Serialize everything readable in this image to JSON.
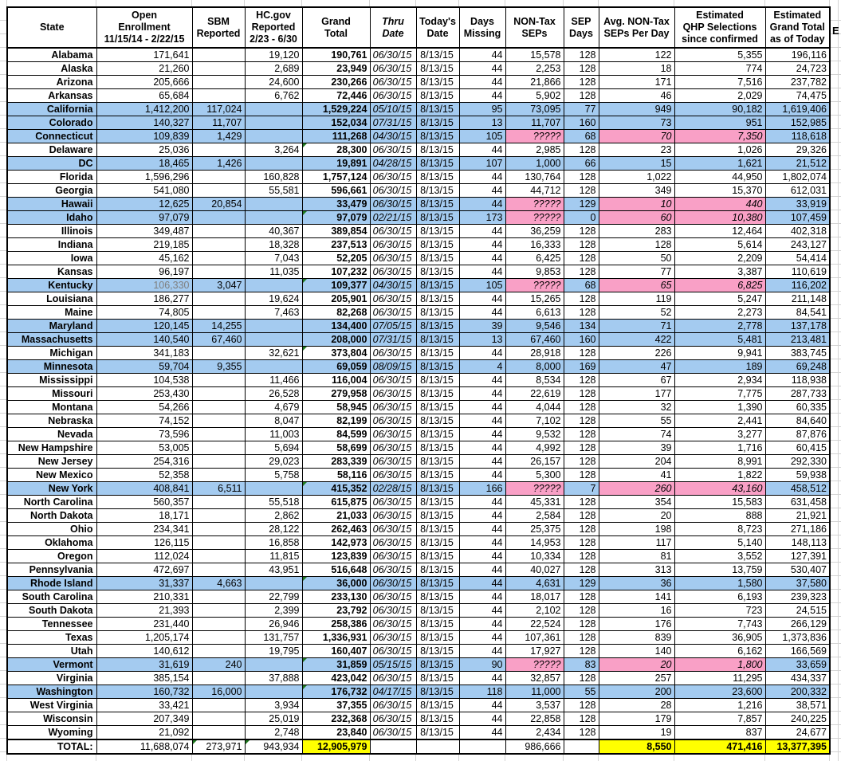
{
  "page": {
    "partial_next_column_label": "E"
  },
  "colors": {
    "row_blue": "#A4CBF0",
    "cell_pink": "#F9A0C6",
    "total_yellow": "#FFFF00",
    "corner_green": "#1F7A1F",
    "gray_text": "#7F7F7F",
    "grid_gray": "#D4D4D4"
  },
  "columns": [
    {
      "key": "s",
      "label": "State"
    },
    {
      "key": "o",
      "label": "Open\nEnrollment\n11/15/14 - 2/22/15"
    },
    {
      "key": "b",
      "label": "SBM\nReported"
    },
    {
      "key": "h",
      "label": "HC.gov\nReported\n2/23 - 6/30"
    },
    {
      "key": "g",
      "label": "Grand\nTotal"
    },
    {
      "key": "t",
      "label": "Thru\nDate"
    },
    {
      "key": "d",
      "label": "Today's\nDate"
    },
    {
      "key": "m",
      "label": "Days\nMissing"
    },
    {
      "key": "n",
      "label": "NON-Tax\nSEPs"
    },
    {
      "key": "p",
      "label": "SEP\nDays"
    },
    {
      "key": "a",
      "label": "Avg. NON-Tax\nSEPs Per Day"
    },
    {
      "key": "q",
      "label": "Estimated\nQHP Selections\nsince confirmed"
    },
    {
      "key": "e",
      "label": "Estimated\nGrand Total\nas of Today"
    }
  ],
  "rows": [
    {
      "s": "Alabama",
      "o": "171,641",
      "b": "",
      "h": "19,120",
      "g": "190,761",
      "t": "06/30/15",
      "d": "8/13/15",
      "m": "44",
      "n": "15,578",
      "p": "128",
      "a": "122",
      "q": "5,355",
      "e": "196,116",
      "f": ""
    },
    {
      "s": "Alaska",
      "o": "21,260",
      "b": "",
      "h": "2,689",
      "g": "23,949",
      "t": "06/30/15",
      "d": "8/13/15",
      "m": "44",
      "n": "2,253",
      "p": "128",
      "a": "18",
      "q": "774",
      "e": "24,723",
      "f": ""
    },
    {
      "s": "Arizona",
      "o": "205,666",
      "b": "",
      "h": "24,600",
      "g": "230,266",
      "t": "06/30/15",
      "d": "8/13/15",
      "m": "44",
      "n": "21,866",
      "p": "128",
      "a": "171",
      "q": "7,516",
      "e": "237,782",
      "f": ""
    },
    {
      "s": "Arkansas",
      "o": "65,684",
      "b": "",
      "h": "6,762",
      "g": "72,446",
      "t": "06/30/15",
      "d": "8/13/15",
      "m": "44",
      "n": "5,902",
      "p": "128",
      "a": "46",
      "q": "2,029",
      "e": "74,475",
      "f": ""
    },
    {
      "s": "California",
      "o": "1,412,200",
      "b": "117,024",
      "h": "",
      "g": "1,529,224",
      "t": "05/10/15",
      "d": "8/13/15",
      "m": "95",
      "n": "73,095",
      "p": "77",
      "a": "949",
      "q": "90,182",
      "e": "1,619,406",
      "f": "B"
    },
    {
      "s": "Colorado",
      "o": "140,327",
      "b": "11,707",
      "h": "",
      "g": "152,034",
      "t": "07/31/15",
      "d": "8/13/15",
      "m": "13",
      "n": "11,707",
      "p": "160",
      "a": "73",
      "q": "951",
      "e": "152,985",
      "f": "B"
    },
    {
      "s": "Connecticut",
      "o": "109,839",
      "b": "1,429",
      "h": "",
      "g": "111,268",
      "t": "04/30/15",
      "d": "8/13/15",
      "m": "105",
      "n": "?????",
      "p": "68",
      "a": "70",
      "q": "7,350",
      "e": "118,618",
      "f": "BP"
    },
    {
      "s": "Delaware",
      "o": "25,036",
      "b": "",
      "h": "3,264",
      "g": "28,300",
      "t": "06/30/15",
      "d": "8/13/15",
      "m": "44",
      "n": "2,985",
      "p": "128",
      "a": "23",
      "q": "1,026",
      "e": "29,326",
      "f": "C"
    },
    {
      "s": "DC",
      "o": "18,465",
      "b": "1,426",
      "h": "",
      "g": "19,891",
      "t": "04/28/15",
      "d": "8/13/15",
      "m": "107",
      "n": "1,000",
      "p": "66",
      "a": "15",
      "q": "1,621",
      "e": "21,512",
      "f": "B"
    },
    {
      "s": "Florida",
      "o": "1,596,296",
      "b": "",
      "h": "160,828",
      "g": "1,757,124",
      "t": "06/30/15",
      "d": "8/13/15",
      "m": "44",
      "n": "130,764",
      "p": "128",
      "a": "1,022",
      "q": "44,950",
      "e": "1,802,074",
      "f": ""
    },
    {
      "s": "Georgia",
      "o": "541,080",
      "b": "",
      "h": "55,581",
      "g": "596,661",
      "t": "06/30/15",
      "d": "8/13/15",
      "m": "44",
      "n": "44,712",
      "p": "128",
      "a": "349",
      "q": "15,370",
      "e": "612,031",
      "f": ""
    },
    {
      "s": "Hawaii",
      "o": "12,625",
      "b": "20,854",
      "h": "",
      "g": "33,479",
      "t": "06/30/15",
      "d": "8/13/15",
      "m": "44",
      "n": "?????",
      "p": "129",
      "a": "10",
      "q": "440",
      "e": "33,919",
      "f": "BP"
    },
    {
      "s": "Idaho",
      "o": "97,079",
      "b": "",
      "h": "",
      "g": "97,079",
      "t": "02/21/15",
      "d": "8/13/15",
      "m": "173",
      "n": "?????",
      "p": "0",
      "a": "60",
      "q": "10,380",
      "e": "107,459",
      "f": "BPC"
    },
    {
      "s": "Illinois",
      "o": "349,487",
      "b": "",
      "h": "40,367",
      "g": "389,854",
      "t": "06/30/15",
      "d": "8/13/15",
      "m": "44",
      "n": "36,259",
      "p": "128",
      "a": "283",
      "q": "12,464",
      "e": "402,318",
      "f": ""
    },
    {
      "s": "Indiana",
      "o": "219,185",
      "b": "",
      "h": "18,328",
      "g": "237,513",
      "t": "06/30/15",
      "d": "8/13/15",
      "m": "44",
      "n": "16,333",
      "p": "128",
      "a": "128",
      "q": "5,614",
      "e": "243,127",
      "f": ""
    },
    {
      "s": "Iowa",
      "o": "45,162",
      "b": "",
      "h": "7,043",
      "g": "52,205",
      "t": "06/30/15",
      "d": "8/13/15",
      "m": "44",
      "n": "6,425",
      "p": "128",
      "a": "50",
      "q": "2,209",
      "e": "54,414",
      "f": ""
    },
    {
      "s": "Kansas",
      "o": "96,197",
      "b": "",
      "h": "11,035",
      "g": "107,232",
      "t": "06/30/15",
      "d": "8/13/15",
      "m": "44",
      "n": "9,853",
      "p": "128",
      "a": "77",
      "q": "3,387",
      "e": "110,619",
      "f": ""
    },
    {
      "s": "Kentucky",
      "o": "106,330",
      "b": "3,047",
      "h": "",
      "g": "109,377",
      "t": "04/30/15",
      "d": "8/13/15",
      "m": "105",
      "n": "?????",
      "p": "68",
      "a": "65",
      "q": "6,825",
      "e": "116,202",
      "f": "BPCG"
    },
    {
      "s": "Louisiana",
      "o": "186,277",
      "b": "",
      "h": "19,624",
      "g": "205,901",
      "t": "06/30/15",
      "d": "8/13/15",
      "m": "44",
      "n": "15,265",
      "p": "128",
      "a": "119",
      "q": "5,247",
      "e": "211,148",
      "f": ""
    },
    {
      "s": "Maine",
      "o": "74,805",
      "b": "",
      "h": "7,463",
      "g": "82,268",
      "t": "06/30/15",
      "d": "8/13/15",
      "m": "44",
      "n": "6,613",
      "p": "128",
      "a": "52",
      "q": "2,273",
      "e": "84,541",
      "f": ""
    },
    {
      "s": "Maryland",
      "o": "120,145",
      "b": "14,255",
      "h": "",
      "g": "134,400",
      "t": "07/05/15",
      "d": "8/13/15",
      "m": "39",
      "n": "9,546",
      "p": "134",
      "a": "71",
      "q": "2,778",
      "e": "137,178",
      "f": "B"
    },
    {
      "s": "Massachusetts",
      "o": "140,540",
      "b": "67,460",
      "h": "",
      "g": "208,000",
      "t": "07/31/15",
      "d": "8/13/15",
      "m": "13",
      "n": "67,460",
      "p": "160",
      "a": "422",
      "q": "5,481",
      "e": "213,481",
      "f": "B"
    },
    {
      "s": "Michigan",
      "o": "341,183",
      "b": "",
      "h": "32,621",
      "g": "373,804",
      "t": "06/30/15",
      "d": "8/13/15",
      "m": "44",
      "n": "28,918",
      "p": "128",
      "a": "226",
      "q": "9,941",
      "e": "383,745",
      "f": "C"
    },
    {
      "s": "Minnesota",
      "o": "59,704",
      "b": "9,355",
      "h": "",
      "g": "69,059",
      "t": "08/09/15",
      "d": "8/13/15",
      "m": "4",
      "n": "8,000",
      "p": "169",
      "a": "47",
      "q": "189",
      "e": "69,248",
      "f": "B"
    },
    {
      "s": "Mississippi",
      "o": "104,538",
      "b": "",
      "h": "11,466",
      "g": "116,004",
      "t": "06/30/15",
      "d": "8/13/15",
      "m": "44",
      "n": "8,534",
      "p": "128",
      "a": "67",
      "q": "2,934",
      "e": "118,938",
      "f": ""
    },
    {
      "s": "Missouri",
      "o": "253,430",
      "b": "",
      "h": "26,528",
      "g": "279,958",
      "t": "06/30/15",
      "d": "8/13/15",
      "m": "44",
      "n": "22,619",
      "p": "128",
      "a": "177",
      "q": "7,775",
      "e": "287,733",
      "f": ""
    },
    {
      "s": "Montana",
      "o": "54,266",
      "b": "",
      "h": "4,679",
      "g": "58,945",
      "t": "06/30/15",
      "d": "8/13/15",
      "m": "44",
      "n": "4,044",
      "p": "128",
      "a": "32",
      "q": "1,390",
      "e": "60,335",
      "f": ""
    },
    {
      "s": "Nebraska",
      "o": "74,152",
      "b": "",
      "h": "8,047",
      "g": "82,199",
      "t": "06/30/15",
      "d": "8/13/15",
      "m": "44",
      "n": "7,102",
      "p": "128",
      "a": "55",
      "q": "2,441",
      "e": "84,640",
      "f": ""
    },
    {
      "s": "Nevada",
      "o": "73,596",
      "b": "",
      "h": "11,003",
      "g": "84,599",
      "t": "06/30/15",
      "d": "8/13/15",
      "m": "44",
      "n": "9,532",
      "p": "128",
      "a": "74",
      "q": "3,277",
      "e": "87,876",
      "f": ""
    },
    {
      "s": "New Hampshire",
      "o": "53,005",
      "b": "",
      "h": "5,694",
      "g": "58,699",
      "t": "06/30/15",
      "d": "8/13/15",
      "m": "44",
      "n": "4,992",
      "p": "128",
      "a": "39",
      "q": "1,716",
      "e": "60,415",
      "f": ""
    },
    {
      "s": "New Jersey",
      "o": "254,316",
      "b": "",
      "h": "29,023",
      "g": "283,339",
      "t": "06/30/15",
      "d": "8/13/15",
      "m": "44",
      "n": "26,157",
      "p": "128",
      "a": "204",
      "q": "8,991",
      "e": "292,330",
      "f": ""
    },
    {
      "s": "New Mexico",
      "o": "52,358",
      "b": "",
      "h": "5,758",
      "g": "58,116",
      "t": "06/30/15",
      "d": "8/13/15",
      "m": "44",
      "n": "5,300",
      "p": "128",
      "a": "41",
      "q": "1,822",
      "e": "59,938",
      "f": ""
    },
    {
      "s": "New York",
      "o": "408,841",
      "b": "6,511",
      "h": "",
      "g": "415,352",
      "t": "02/28/15",
      "d": "8/13/15",
      "m": "166",
      "n": "?????",
      "p": "7",
      "a": "260",
      "q": "43,160",
      "e": "458,512",
      "f": "BPC"
    },
    {
      "s": "North Carolina",
      "o": "560,357",
      "b": "",
      "h": "55,518",
      "g": "615,875",
      "t": "06/30/15",
      "d": "8/13/15",
      "m": "44",
      "n": "45,331",
      "p": "128",
      "a": "354",
      "q": "15,583",
      "e": "631,458",
      "f": ""
    },
    {
      "s": "North Dakota",
      "o": "18,171",
      "b": "",
      "h": "2,862",
      "g": "21,033",
      "t": "06/30/15",
      "d": "8/13/15",
      "m": "44",
      "n": "2,584",
      "p": "128",
      "a": "20",
      "q": "888",
      "e": "21,921",
      "f": ""
    },
    {
      "s": "Ohio",
      "o": "234,341",
      "b": "",
      "h": "28,122",
      "g": "262,463",
      "t": "06/30/15",
      "d": "8/13/15",
      "m": "44",
      "n": "25,375",
      "p": "128",
      "a": "198",
      "q": "8,723",
      "e": "271,186",
      "f": ""
    },
    {
      "s": "Oklahoma",
      "o": "126,115",
      "b": "",
      "h": "16,858",
      "g": "142,973",
      "t": "06/30/15",
      "d": "8/13/15",
      "m": "44",
      "n": "14,953",
      "p": "128",
      "a": "117",
      "q": "5,140",
      "e": "148,113",
      "f": ""
    },
    {
      "s": "Oregon",
      "o": "112,024",
      "b": "",
      "h": "11,815",
      "g": "123,839",
      "t": "06/30/15",
      "d": "8/13/15",
      "m": "44",
      "n": "10,334",
      "p": "128",
      "a": "81",
      "q": "3,552",
      "e": "127,391",
      "f": ""
    },
    {
      "s": "Pennsylvania",
      "o": "472,697",
      "b": "",
      "h": "43,951",
      "g": "516,648",
      "t": "06/30/15",
      "d": "8/13/15",
      "m": "44",
      "n": "40,027",
      "p": "128",
      "a": "313",
      "q": "13,759",
      "e": "530,407",
      "f": ""
    },
    {
      "s": "Rhode Island",
      "o": "31,337",
      "b": "4,663",
      "h": "",
      "g": "36,000",
      "t": "06/30/15",
      "d": "8/13/15",
      "m": "44",
      "n": "4,631",
      "p": "129",
      "a": "36",
      "q": "1,580",
      "e": "37,580",
      "f": "BC"
    },
    {
      "s": "South Carolina",
      "o": "210,331",
      "b": "",
      "h": "22,799",
      "g": "233,130",
      "t": "06/30/15",
      "d": "8/13/15",
      "m": "44",
      "n": "18,017",
      "p": "128",
      "a": "141",
      "q": "6,193",
      "e": "239,323",
      "f": ""
    },
    {
      "s": "South Dakota",
      "o": "21,393",
      "b": "",
      "h": "2,399",
      "g": "23,792",
      "t": "06/30/15",
      "d": "8/13/15",
      "m": "44",
      "n": "2,102",
      "p": "128",
      "a": "16",
      "q": "723",
      "e": "24,515",
      "f": ""
    },
    {
      "s": "Tennessee",
      "o": "231,440",
      "b": "",
      "h": "26,946",
      "g": "258,386",
      "t": "06/30/15",
      "d": "8/13/15",
      "m": "44",
      "n": "22,524",
      "p": "128",
      "a": "176",
      "q": "7,743",
      "e": "266,129",
      "f": ""
    },
    {
      "s": "Texas",
      "o": "1,205,174",
      "b": "",
      "h": "131,757",
      "g": "1,336,931",
      "t": "06/30/15",
      "d": "8/13/15",
      "m": "44",
      "n": "107,361",
      "p": "128",
      "a": "839",
      "q": "36,905",
      "e": "1,373,836",
      "f": ""
    },
    {
      "s": "Utah",
      "o": "140,612",
      "b": "",
      "h": "19,795",
      "g": "160,407",
      "t": "06/30/15",
      "d": "8/13/15",
      "m": "44",
      "n": "17,927",
      "p": "128",
      "a": "140",
      "q": "6,162",
      "e": "166,569",
      "f": ""
    },
    {
      "s": "Vermont",
      "o": "31,619",
      "b": "240",
      "h": "",
      "g": "31,859",
      "t": "05/15/15",
      "d": "8/13/15",
      "m": "90",
      "n": "?????",
      "p": "83",
      "a": "20",
      "q": "1,800",
      "e": "33,659",
      "f": "BPC"
    },
    {
      "s": "Virginia",
      "o": "385,154",
      "b": "",
      "h": "37,888",
      "g": "423,042",
      "t": "06/30/15",
      "d": "8/13/15",
      "m": "44",
      "n": "32,857",
      "p": "128",
      "a": "257",
      "q": "11,295",
      "e": "434,337",
      "f": ""
    },
    {
      "s": "Washington",
      "o": "160,732",
      "b": "16,000",
      "h": "",
      "g": "176,732",
      "t": "04/17/15",
      "d": "8/13/15",
      "m": "118",
      "n": "11,000",
      "p": "55",
      "a": "200",
      "q": "23,600",
      "e": "200,332",
      "f": "BC"
    },
    {
      "s": "West Virginia",
      "o": "33,421",
      "b": "",
      "h": "3,934",
      "g": "37,355",
      "t": "06/30/15",
      "d": "8/13/15",
      "m": "44",
      "n": "3,537",
      "p": "128",
      "a": "28",
      "q": "1,216",
      "e": "38,571",
      "f": ""
    },
    {
      "s": "Wisconsin",
      "o": "207,349",
      "b": "",
      "h": "25,019",
      "g": "232,368",
      "t": "06/30/15",
      "d": "8/13/15",
      "m": "44",
      "n": "22,858",
      "p": "128",
      "a": "179",
      "q": "7,857",
      "e": "240,225",
      "f": ""
    },
    {
      "s": "Wyoming",
      "o": "21,092",
      "b": "",
      "h": "2,748",
      "g": "23,840",
      "t": "06/30/15",
      "d": "8/13/15",
      "m": "44",
      "n": "2,434",
      "p": "128",
      "a": "19",
      "q": "837",
      "e": "24,677",
      "f": ""
    }
  ],
  "total_row": {
    "s": "TOTAL:",
    "o": "11,688,074",
    "b": "273,971",
    "h": "943,934",
    "g": "12,905,979",
    "t": "",
    "d": "",
    "m": "",
    "n": "986,666",
    "p": "",
    "a": "8,550",
    "q": "471,416",
    "e": "13,377,395"
  }
}
